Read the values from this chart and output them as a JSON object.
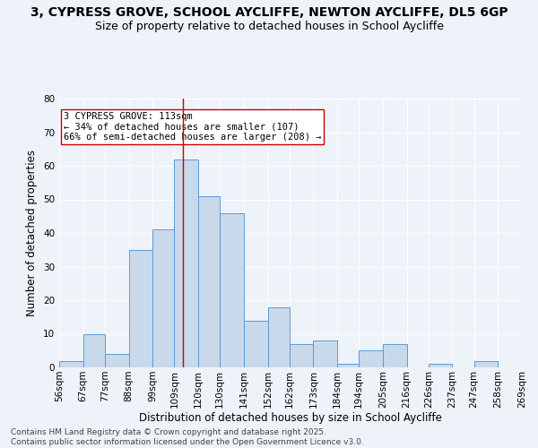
{
  "title_line1": "3, CYPRESS GROVE, SCHOOL AYCLIFFE, NEWTON AYCLIFFE, DL5 6GP",
  "title_line2": "Size of property relative to detached houses in School Aycliffe",
  "xlabel": "Distribution of detached houses by size in School Aycliffe",
  "ylabel": "Number of detached properties",
  "footer": "Contains HM Land Registry data © Crown copyright and database right 2025.\nContains public sector information licensed under the Open Government Licence v3.0.",
  "bin_labels": [
    "56sqm",
    "67sqm",
    "77sqm",
    "88sqm",
    "99sqm",
    "109sqm",
    "120sqm",
    "130sqm",
    "141sqm",
    "152sqm",
    "162sqm",
    "173sqm",
    "184sqm",
    "194sqm",
    "205sqm",
    "216sqm",
    "226sqm",
    "237sqm",
    "247sqm",
    "258sqm",
    "269sqm"
  ],
  "bin_edges": [
    56,
    67,
    77,
    88,
    99,
    109,
    120,
    130,
    141,
    152,
    162,
    173,
    184,
    194,
    205,
    216,
    226,
    237,
    247,
    258,
    269
  ],
  "counts": [
    2,
    10,
    4,
    35,
    41,
    62,
    51,
    46,
    14,
    18,
    7,
    8,
    1,
    5,
    7,
    0,
    1,
    0,
    2,
    0
  ],
  "bar_color": "#c9d9ec",
  "bar_edge_color": "#5b9bd5",
  "property_size": 113,
  "vline_color": "#cc0000",
  "annotation_text": "3 CYPRESS GROVE: 113sqm\n← 34% of detached houses are smaller (107)\n66% of semi-detached houses are larger (208) →",
  "annotation_box_color": "white",
  "annotation_box_edge_color": "#cc0000",
  "ylim": [
    0,
    80
  ],
  "yticks": [
    0,
    10,
    20,
    30,
    40,
    50,
    60,
    70,
    80
  ],
  "background_color": "#eef2f9",
  "grid_color": "white",
  "title_fontsize": 10,
  "subtitle_fontsize": 9,
  "axis_label_fontsize": 8.5,
  "tick_fontsize": 7.5,
  "annotation_fontsize": 7.5,
  "footer_fontsize": 6.5
}
